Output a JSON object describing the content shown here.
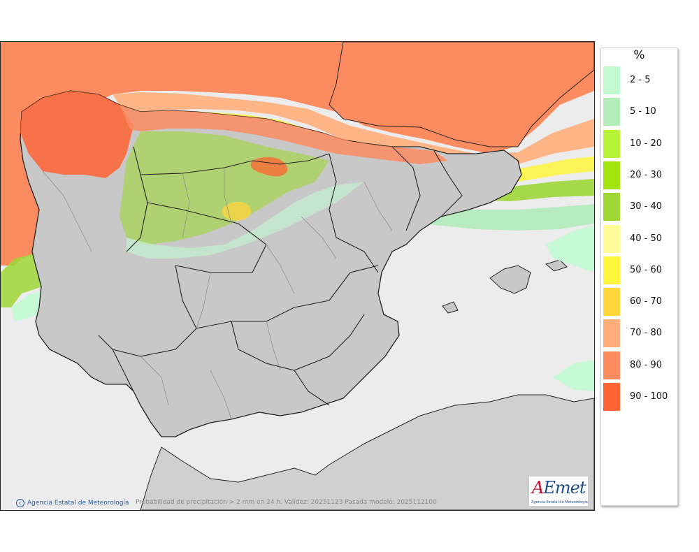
{
  "map": {
    "credit": "Agencia Estatal de Meteorología",
    "caption": "Probabilidad de precipitación > 2 mm en 24 h. Validez: 20251123 Pasada modelo: 2025112100",
    "logo_text_a": "A",
    "logo_text_b": "Emet",
    "logo_sub": "Agencia Estatal de Meteorología",
    "colors": {
      "sea": "#ececec",
      "land": "#c8c8c8",
      "borders": "#222222"
    }
  },
  "legend": {
    "unit": "%",
    "items": [
      {
        "label": "2 - 5",
        "color": "#c2fbd2"
      },
      {
        "label": "5 - 10",
        "color": "#b3ecbb"
      },
      {
        "label": "10 - 20",
        "color": "#b8f237"
      },
      {
        "label": "20 - 30",
        "color": "#a4e40c"
      },
      {
        "label": "30 - 40",
        "color": "#9fd737"
      },
      {
        "label": "40 - 50",
        "color": "#fffb99"
      },
      {
        "label": "50 - 60",
        "color": "#fff63c"
      },
      {
        "label": "60 - 70",
        "color": "#ffd43c"
      },
      {
        "label": "70 - 80",
        "color": "#ffae7c"
      },
      {
        "label": "80 - 90",
        "color": "#fd8b60"
      },
      {
        "label": "90 - 100",
        "color": "#ff6332"
      }
    ]
  }
}
